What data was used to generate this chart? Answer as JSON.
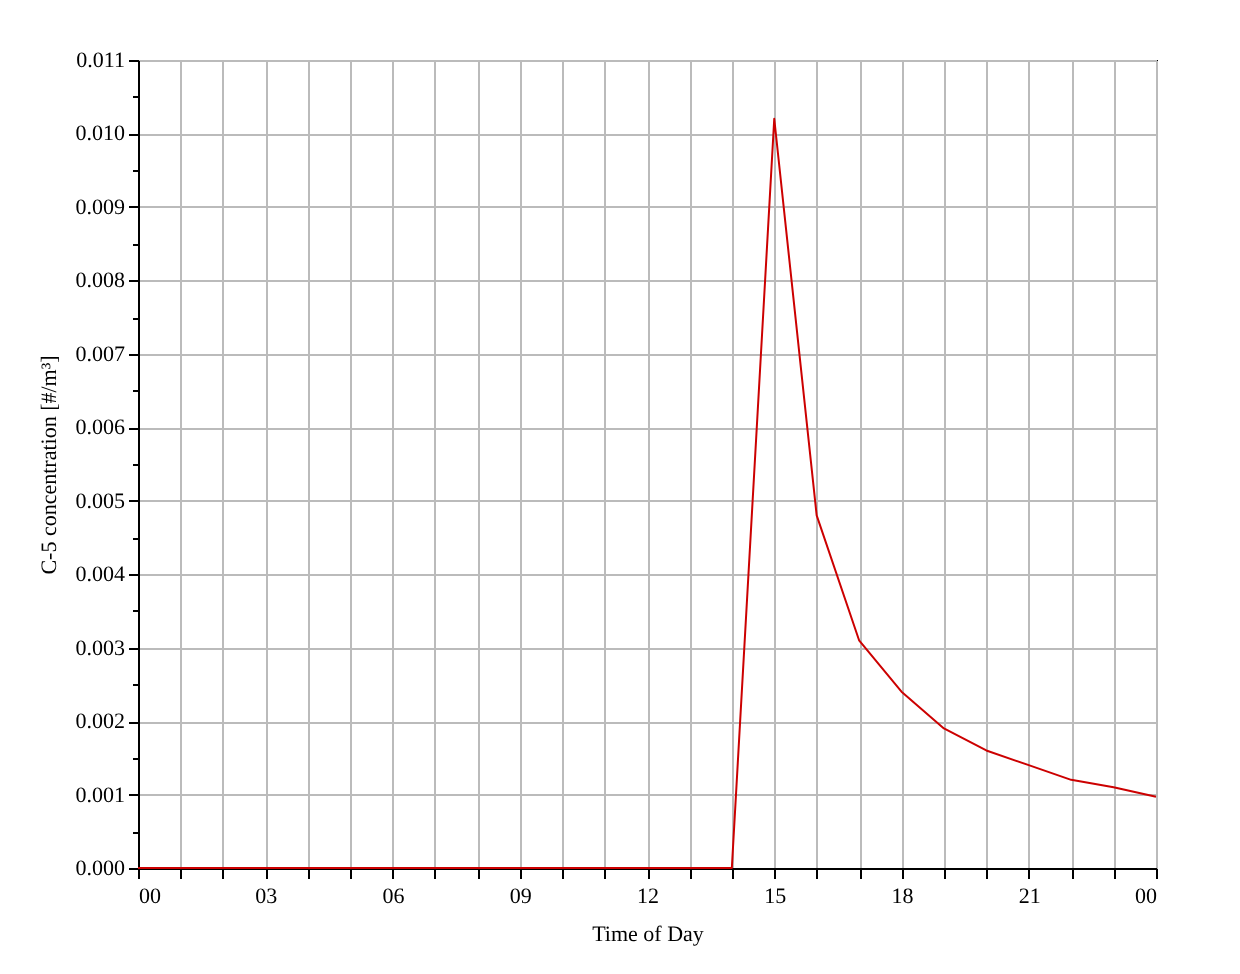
{
  "chart_data": {
    "type": "line",
    "xlabel": "Time of Day",
    "ylabel": "C-5 concentration [#/m³]",
    "x": [
      0,
      1,
      2,
      3,
      4,
      5,
      6,
      7,
      8,
      9,
      10,
      11,
      12,
      13,
      14,
      15,
      16,
      17,
      18,
      19,
      20,
      21,
      22,
      23,
      24
    ],
    "series": [
      {
        "color": "#cc0000",
        "values": [
          0,
          0,
          0,
          0,
          0,
          0,
          0,
          0,
          0,
          0,
          0,
          0,
          0,
          0,
          0,
          0.0102,
          0.0048,
          0.0031,
          0.0024,
          0.0019,
          0.0016,
          0.0014,
          0.0012,
          0.0011,
          0.00097
        ]
      }
    ],
    "xlim": [
      0,
      24
    ],
    "xticks": [
      {
        "value": 0,
        "label": "00"
      },
      {
        "value": 1,
        "label": null
      },
      {
        "value": 2,
        "label": null
      },
      {
        "value": 3,
        "label": "03"
      },
      {
        "value": 4,
        "label": null
      },
      {
        "value": 5,
        "label": null
      },
      {
        "value": 6,
        "label": "06"
      },
      {
        "value": 7,
        "label": null
      },
      {
        "value": 8,
        "label": null
      },
      {
        "value": 9,
        "label": "09"
      },
      {
        "value": 10,
        "label": null
      },
      {
        "value": 11,
        "label": null
      },
      {
        "value": 12,
        "label": "12"
      },
      {
        "value": 13,
        "label": null
      },
      {
        "value": 14,
        "label": null
      },
      {
        "value": 15,
        "label": "15"
      },
      {
        "value": 16,
        "label": null
      },
      {
        "value": 17,
        "label": null
      },
      {
        "value": 18,
        "label": "18"
      },
      {
        "value": 19,
        "label": null
      },
      {
        "value": 20,
        "label": null
      },
      {
        "value": 21,
        "label": "21"
      },
      {
        "value": 22,
        "label": null
      },
      {
        "value": 23,
        "label": null
      },
      {
        "value": 24,
        "label": "00"
      }
    ],
    "ylim": [
      0,
      0.011
    ],
    "yticks": [
      {
        "value": 0,
        "label": "0.000"
      },
      {
        "value": 0.0005,
        "label": null
      },
      {
        "value": 0.001,
        "label": "0.001"
      },
      {
        "value": 0.0015,
        "label": null
      },
      {
        "value": 0.002,
        "label": "0.002"
      },
      {
        "value": 0.0025,
        "label": null
      },
      {
        "value": 0.003,
        "label": "0.003"
      },
      {
        "value": 0.0035,
        "label": null
      },
      {
        "value": 0.004,
        "label": "0.004"
      },
      {
        "value": 0.0045,
        "label": null
      },
      {
        "value": 0.005,
        "label": "0.005"
      },
      {
        "value": 0.0055,
        "label": null
      },
      {
        "value": 0.006,
        "label": "0.006"
      },
      {
        "value": 0.0065,
        "label": null
      },
      {
        "value": 0.007,
        "label": "0.007"
      },
      {
        "value": 0.0075,
        "label": null
      },
      {
        "value": 0.008,
        "label": "0.008"
      },
      {
        "value": 0.0085,
        "label": null
      },
      {
        "value": 0.009,
        "label": "0.009"
      },
      {
        "value": 0.0095,
        "label": null
      },
      {
        "value": 0.01,
        "label": "0.010"
      },
      {
        "value": 0.0105,
        "label": null
      },
      {
        "value": 0.011,
        "label": "0.011"
      }
    ],
    "grid": true
  }
}
